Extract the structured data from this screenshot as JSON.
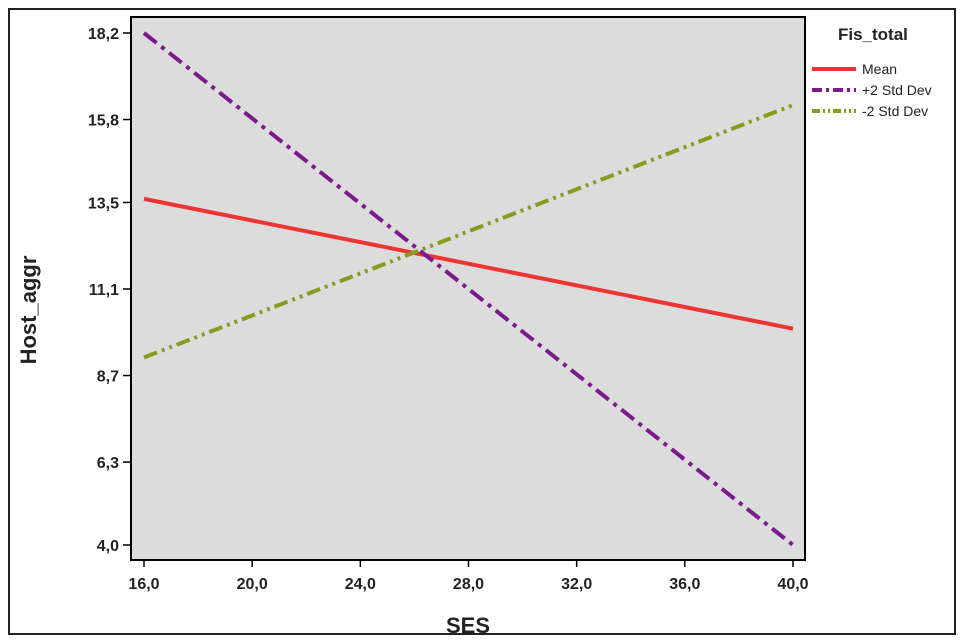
{
  "chart_data": {
    "type": "line",
    "title": "",
    "xlabel": "SES",
    "ylabel": "Host_aggr",
    "legend_title": "Fis_total",
    "legend_position": "top-right",
    "grid": false,
    "xlim": [
      16.0,
      40.0
    ],
    "ylim": [
      4.0,
      18.2
    ],
    "x_ticks": [
      "16,0",
      "20,0",
      "24,0",
      "28,0",
      "32,0",
      "36,0",
      "40,0"
    ],
    "y_ticks": [
      "4,0",
      "6,3",
      "8,7",
      "11,1",
      "13,5",
      "15,8",
      "18,2"
    ],
    "x_tick_values": [
      16,
      20,
      24,
      28,
      32,
      36,
      40
    ],
    "y_tick_values": [
      4.0,
      6.3,
      8.7,
      11.1,
      13.5,
      15.8,
      18.2
    ],
    "series": [
      {
        "name": "Mean",
        "x": [
          16.0,
          40.0
        ],
        "y": [
          13.6,
          10.0
        ],
        "color": "#ee3333",
        "dash": "solid"
      },
      {
        "name": "+2 Std Dev",
        "x": [
          16.0,
          40.0
        ],
        "y": [
          18.2,
          4.0
        ],
        "color": "#7a1a8c",
        "dash": "dashdot"
      },
      {
        "name": "-2 Std Dev",
        "x": [
          16.0,
          40.0
        ],
        "y": [
          9.2,
          16.2
        ],
        "color": "#8a9a1e",
        "dash": "dashdotdot"
      }
    ],
    "colors": {
      "plot_background": "#dcdcdc",
      "frame": "#000000"
    }
  }
}
